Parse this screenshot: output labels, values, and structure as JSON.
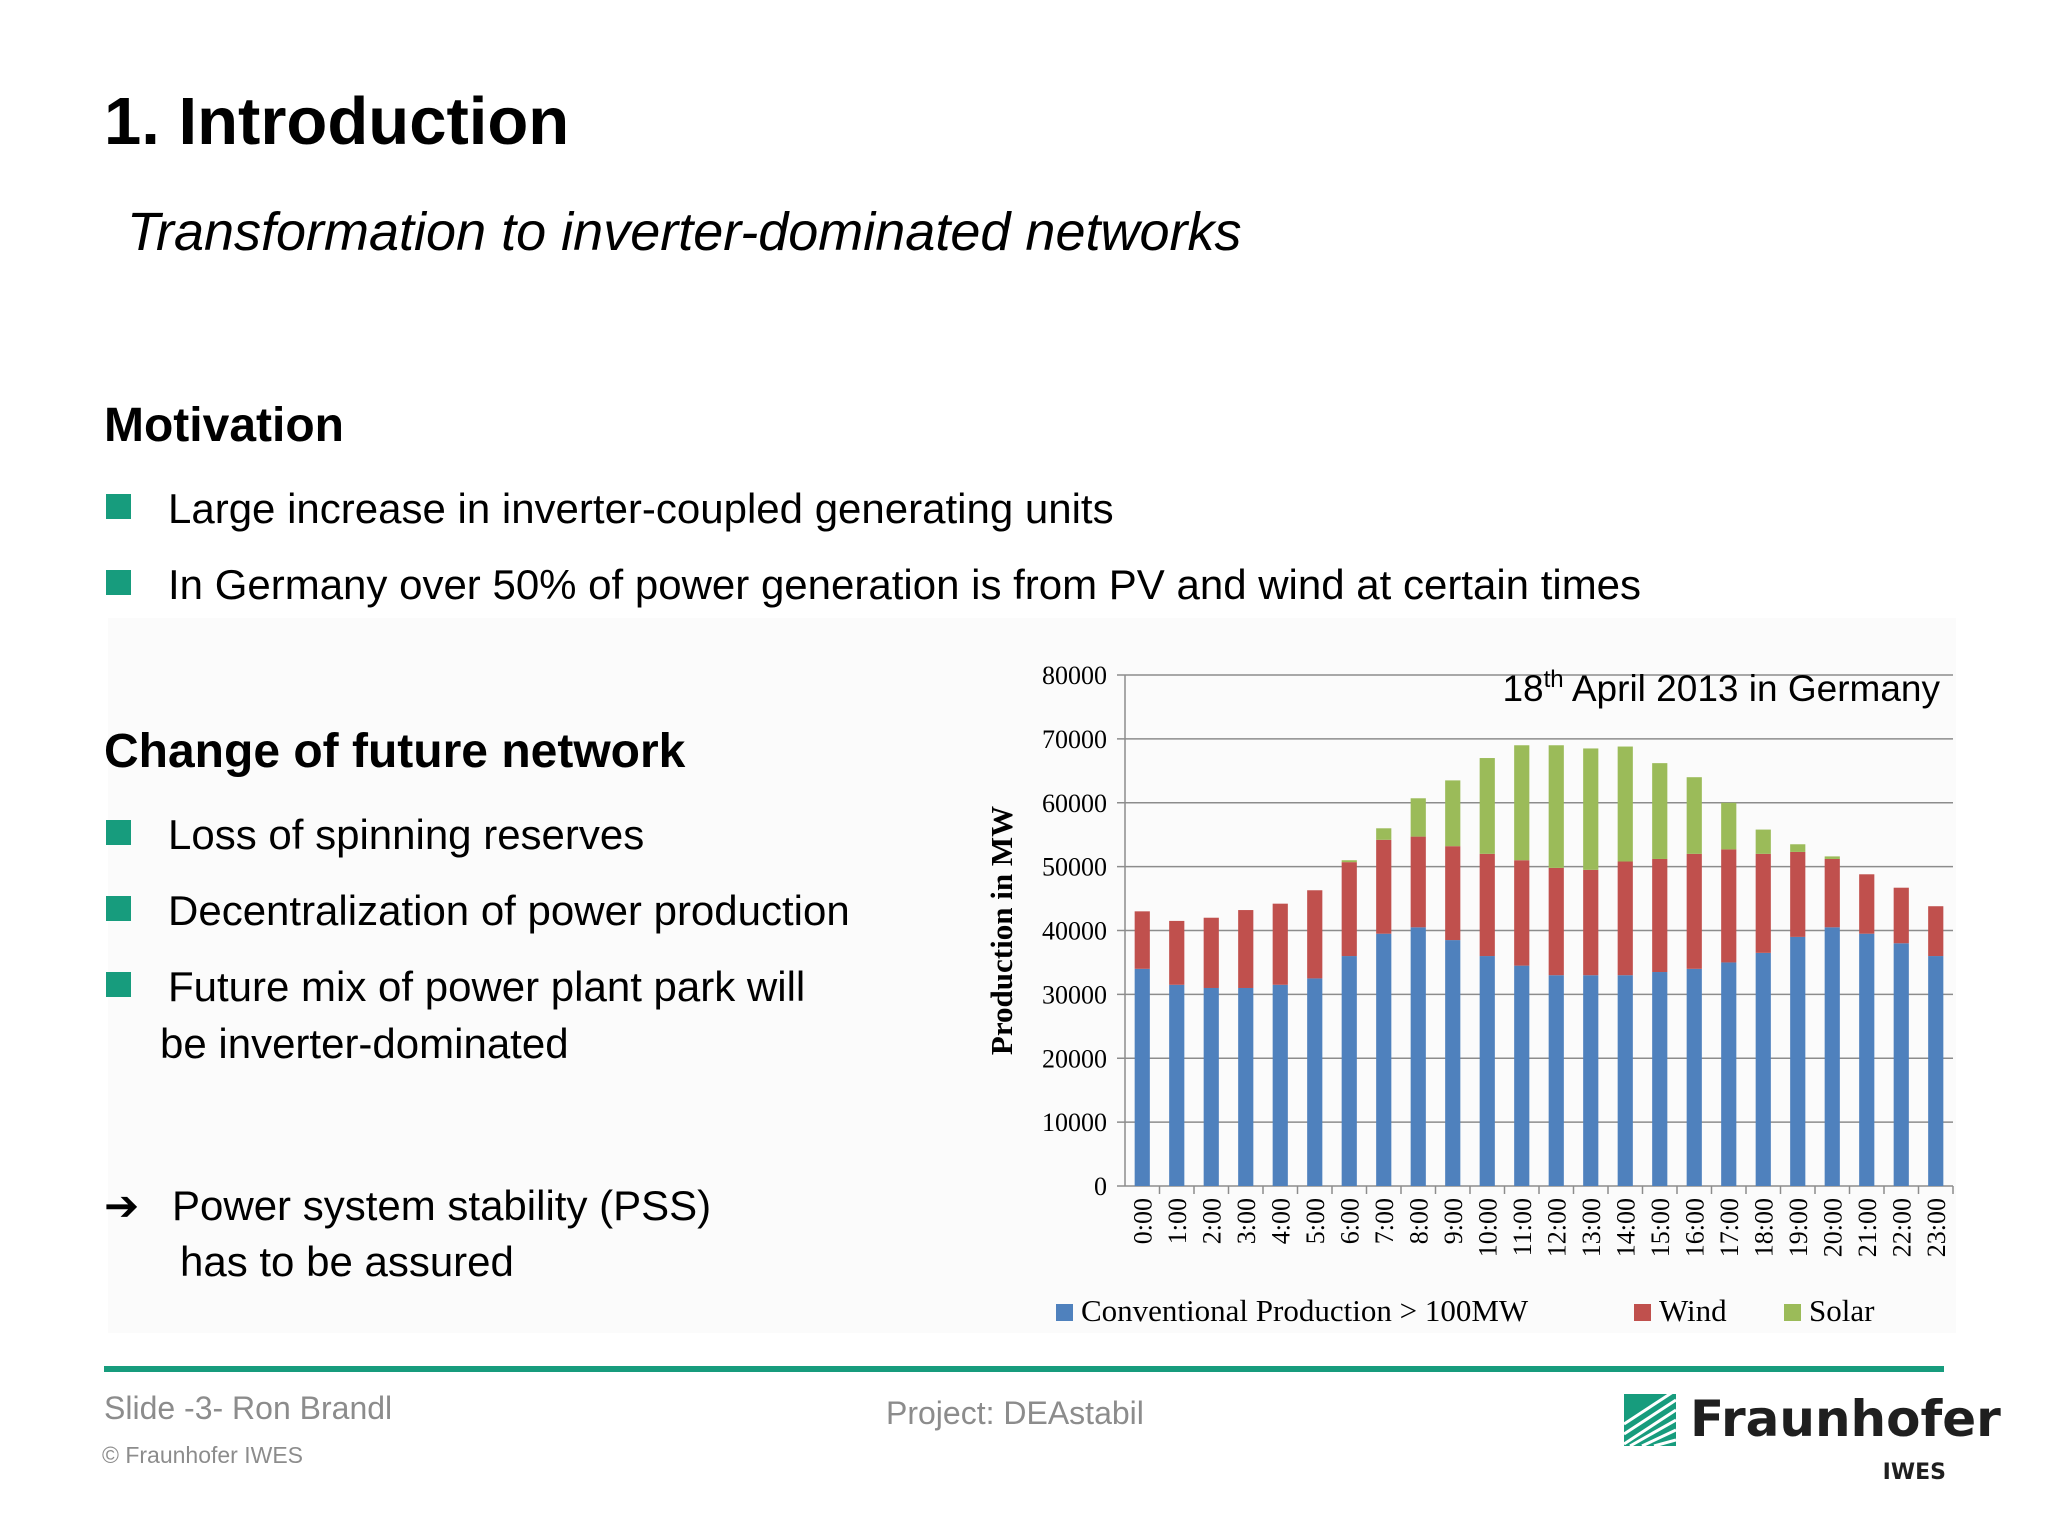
{
  "title": "1. Introduction",
  "subtitle": "Transformation to inverter-dominated networks",
  "motivation": {
    "heading": "Motivation",
    "bullets": [
      "Large increase in inverter-coupled generating units",
      "In Germany over 50% of power generation is from PV and wind at certain times"
    ]
  },
  "change": {
    "heading": "Change of future network",
    "bullets": [
      "Loss of spinning reserves",
      "Decentralization of power production",
      "Future mix of power plant park will",
      "be inverter-dominated"
    ]
  },
  "conclusion": {
    "arrow": "➔",
    "line1": "Power system stability (PSS)",
    "line2": "has to be assured"
  },
  "footer": {
    "author": "Slide -3- Ron Brandl",
    "copyright": "© Fraunhofer IWES",
    "project": "Project: DEAstabil"
  },
  "logo": {
    "name": "Fraunhofer",
    "sub": "IWES",
    "color": "#179c7d"
  },
  "colors": {
    "accent": "#179c7d",
    "conventional": "#4f81bd",
    "wind": "#c0504d",
    "solar": "#9bbb59"
  },
  "chart_data": {
    "type": "bar",
    "stacked": true,
    "title": "18th April 2013 in Germany",
    "title_main": "18",
    "title_sup": "th",
    "title_rest": " April 2013 in Germany",
    "ylabel": "Production in MW",
    "xlabel": "",
    "ylim": [
      0,
      80000
    ],
    "yticks": [
      "0",
      "10000",
      "20000",
      "30000",
      "40000",
      "50000",
      "60000",
      "70000",
      "80000"
    ],
    "grid": true,
    "legend_position": "bottom",
    "categories": [
      "0:00",
      "1:00",
      "2:00",
      "3:00",
      "4:00",
      "5:00",
      "6:00",
      "7:00",
      "8:00",
      "9:00",
      "10:00",
      "11:00",
      "12:00",
      "13:00",
      "14:00",
      "15:00",
      "16:00",
      "17:00",
      "18:00",
      "19:00",
      "20:00",
      "21:00",
      "22:00",
      "23:00"
    ],
    "series": [
      {
        "name": "Conventional Production > 100MW",
        "color": "#4f81bd",
        "values": [
          34000,
          31500,
          31000,
          31000,
          31500,
          32500,
          36000,
          39500,
          40500,
          38500,
          36000,
          34500,
          33000,
          33000,
          33000,
          33500,
          34000,
          35000,
          36500,
          39000,
          40500,
          39500,
          38000,
          36000
        ]
      },
      {
        "name": "Wind",
        "color": "#c0504d",
        "values": [
          9000,
          10000,
          11000,
          12200,
          12700,
          13800,
          14700,
          14700,
          14200,
          14700,
          16000,
          16500,
          16800,
          16500,
          17800,
          17700,
          18000,
          17700,
          15500,
          13300,
          10700,
          9300,
          8700,
          7800
        ]
      },
      {
        "name": "Solar",
        "color": "#9bbb59",
        "values": [
          0,
          0,
          0,
          0,
          0,
          0,
          300,
          1800,
          6000,
          10300,
          15000,
          18000,
          19200,
          19000,
          18000,
          15000,
          12000,
          7300,
          3800,
          1200,
          400,
          0,
          0,
          0
        ]
      }
    ]
  }
}
